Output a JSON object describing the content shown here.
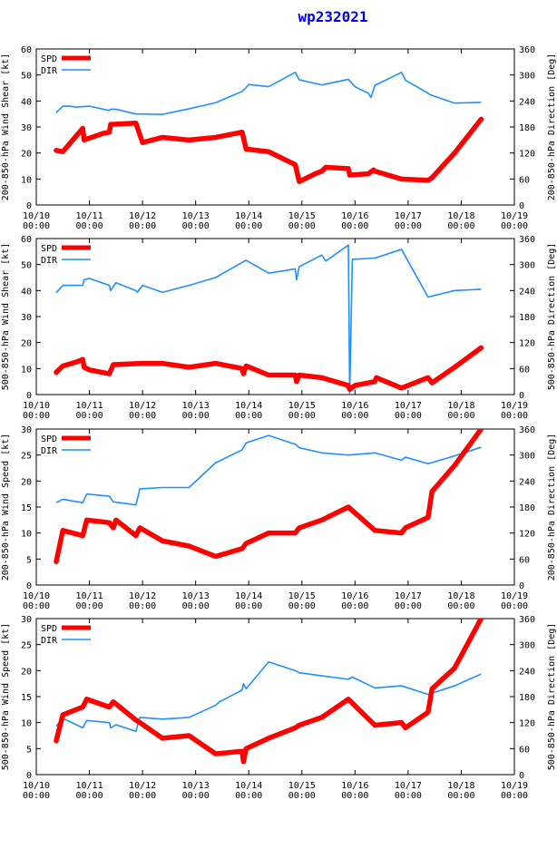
{
  "title": "wp232021",
  "colors": {
    "spd": "#ff0000",
    "dir": "#1e90ff",
    "axis": "#000000",
    "grid": "#000000"
  },
  "legend": {
    "spd": "SPD",
    "dir": "DIR"
  },
  "x_ticks": [
    [
      "10/10",
      "00:00"
    ],
    [
      "10/11",
      "00:00"
    ],
    [
      "10/12",
      "00:00"
    ],
    [
      "10/13",
      "00:00"
    ],
    [
      "10/14",
      "00:00"
    ],
    [
      "10/15",
      "00:00"
    ],
    [
      "10/16",
      "00:00"
    ],
    [
      "10/17",
      "00:00"
    ],
    [
      "10/18",
      "00:00"
    ],
    [
      "10/19",
      "00:00"
    ]
  ],
  "chart_data": [
    {
      "type": "line",
      "xlabel": "",
      "ylabel": "200-850-hPa Wind Shear [kt]",
      "y2label": "200-850-hPa Direction [Deg]",
      "xlim": [
        0,
        9
      ],
      "ylim": [
        0,
        60
      ],
      "y2lim": [
        0,
        360
      ],
      "yticks": [
        "0",
        "10",
        "20",
        "30",
        "40",
        "50",
        "60"
      ],
      "y2ticks": [
        "0",
        "60",
        "120",
        "180",
        "240",
        "300",
        "360"
      ],
      "series": [
        {
          "name": "SPD",
          "axis": "left",
          "x": [
            0.375,
            0.5,
            0.875,
            0.9,
            1.25,
            1.375,
            1.4,
            1.875,
            2.0,
            2.375,
            2.875,
            3.375,
            3.875,
            3.95,
            4.375,
            4.875,
            4.95,
            5.25,
            5.375,
            5.45,
            5.875,
            5.9,
            6.25,
            6.35,
            6.375,
            6.875,
            7.375,
            7.45,
            7.875,
            8.375
          ],
          "y": [
            21,
            20.5,
            29.5,
            25,
            27.5,
            28,
            31,
            31.5,
            24,
            26,
            25,
            26,
            28,
            21.5,
            20.5,
            15.5,
            9,
            12,
            13,
            14.5,
            14,
            11.5,
            12,
            13.5,
            13,
            10,
            9.5,
            10.5,
            20,
            33
          ]
        },
        {
          "name": "DIR",
          "axis": "right",
          "x": [
            0.375,
            0.5,
            0.625,
            0.75,
            1.0,
            1.375,
            1.4,
            1.5,
            1.875,
            2.0,
            2.375,
            2.875,
            3.375,
            3.875,
            3.95,
            4.0,
            4.375,
            4.875,
            4.95,
            5.375,
            5.875,
            6.0,
            6.25,
            6.3,
            6.375,
            6.875,
            6.95,
            7.375,
            7.4,
            7.875,
            8.375
          ],
          "y": [
            213,
            228,
            228,
            226,
            228,
            218,
            221,
            221,
            210,
            210,
            209,
            222,
            236,
            262,
            271,
            278,
            273,
            306,
            289,
            277,
            290,
            273,
            258,
            248,
            276,
            306,
            288,
            258,
            255,
            235,
            237
          ]
        }
      ]
    },
    {
      "type": "line",
      "xlabel": "",
      "ylabel": "500-850-hPa Wind Shear [kt]",
      "y2label": "500-850-hPa Direction [Deg]",
      "xlim": [
        0,
        9
      ],
      "ylim": [
        0,
        60
      ],
      "y2lim": [
        0,
        360
      ],
      "yticks": [
        "0",
        "10",
        "20",
        "30",
        "40",
        "50",
        "60"
      ],
      "y2ticks": [
        "0",
        "60",
        "120",
        "180",
        "240",
        "300",
        "360"
      ],
      "series": [
        {
          "name": "SPD",
          "axis": "left",
          "x": [
            0.375,
            0.5,
            0.75,
            0.875,
            0.9,
            1.0,
            1.375,
            1.45,
            2.0,
            2.375,
            2.875,
            3.375,
            3.875,
            3.9,
            3.95,
            4.375,
            4.875,
            4.9,
            4.95,
            5.375,
            5.875,
            5.9,
            6.0,
            6.375,
            6.4,
            6.875,
            7.375,
            7.45,
            7.875,
            8.375
          ],
          "y": [
            8.5,
            11,
            12.5,
            13.5,
            10.5,
            9.5,
            8,
            11.5,
            12,
            12,
            10.5,
            12,
            10,
            8,
            11,
            7.5,
            7.5,
            5,
            7.5,
            6.5,
            3.5,
            2,
            3.5,
            5,
            6.5,
            2.5,
            6.5,
            4.5,
            10.5,
            18
          ]
        },
        {
          "name": "DIR",
          "axis": "right",
          "x": [
            0.375,
            0.5,
            0.875,
            0.9,
            1.0,
            1.375,
            1.4,
            1.5,
            1.875,
            1.9,
            2.0,
            2.375,
            2.875,
            3.375,
            3.875,
            3.95,
            4.375,
            4.875,
            4.9,
            4.95,
            5.375,
            5.45,
            5.875,
            5.9,
            5.95,
            6.375,
            6.875,
            7.375,
            7.875,
            8.375
          ],
          "y": [
            235,
            252,
            252,
            265,
            268,
            252,
            240,
            258,
            240,
            236,
            252,
            236,
            252,
            270,
            305,
            310,
            280,
            290,
            265,
            295,
            322,
            308,
            345,
            0,
            312,
            315,
            335,
            225,
            240,
            243
          ]
        }
      ]
    },
    {
      "type": "line",
      "xlabel": "",
      "ylabel": "200-850-hPa Wind Speed [kt]",
      "y2label": "200-850-hPa Direction [Deg]",
      "xlim": [
        0,
        9
      ],
      "ylim": [
        0,
        30
      ],
      "y2lim": [
        0,
        360
      ],
      "yticks": [
        "0",
        "5",
        "10",
        "15",
        "20",
        "25",
        "30"
      ],
      "y2ticks": [
        "0",
        "60",
        "120",
        "180",
        "240",
        "300",
        "360"
      ],
      "series": [
        {
          "name": "SPD",
          "axis": "left",
          "x": [
            0.375,
            0.5,
            0.875,
            0.95,
            1.375,
            1.45,
            1.5,
            1.875,
            1.95,
            2.375,
            2.875,
            3.375,
            3.875,
            3.95,
            4.375,
            4.875,
            4.95,
            5.375,
            5.875,
            6.375,
            6.875,
            6.95,
            7.375,
            7.45,
            7.875,
            8.375
          ],
          "y": [
            4.5,
            10.5,
            9.5,
            12.5,
            12,
            11,
            12.5,
            9.5,
            11,
            8.5,
            7.5,
            5.5,
            7,
            8,
            10,
            10,
            11,
            12.5,
            15,
            10.5,
            10,
            11,
            13,
            18,
            23,
            30
          ]
        },
        {
          "name": "DIR",
          "axis": "right",
          "x": [
            0.375,
            0.5,
            0.875,
            0.95,
            1.375,
            1.45,
            1.875,
            1.95,
            2.375,
            2.875,
            3.375,
            3.875,
            3.95,
            4.375,
            4.875,
            4.95,
            5.375,
            5.875,
            6.375,
            6.875,
            6.95,
            7.375,
            7.875,
            8.375
          ],
          "y": [
            190,
            198,
            190,
            210,
            205,
            192,
            185,
            222,
            225,
            225,
            282,
            312,
            328,
            345,
            325,
            317,
            305,
            300,
            305,
            288,
            295,
            280,
            298,
            318
          ]
        }
      ]
    },
    {
      "type": "line",
      "xlabel": "",
      "ylabel": "500-850-hPa Wind Speed [kt]",
      "y2label": "500-850-hPa Direction [Deg]",
      "xlim": [
        0,
        9
      ],
      "ylim": [
        0,
        30
      ],
      "y2lim": [
        0,
        360
      ],
      "yticks": [
        "0",
        "5",
        "10",
        "15",
        "20",
        "25",
        "30"
      ],
      "y2ticks": [
        "0",
        "60",
        "120",
        "180",
        "240",
        "300",
        "360"
      ],
      "series": [
        {
          "name": "SPD",
          "axis": "left",
          "x": [
            0.375,
            0.5,
            0.875,
            0.95,
            1.375,
            1.45,
            1.875,
            1.95,
            2.375,
            2.875,
            3.375,
            3.875,
            3.9,
            3.95,
            4.375,
            4.875,
            4.95,
            5.375,
            5.875,
            6.375,
            6.875,
            6.95,
            7.375,
            7.45,
            7.875,
            8.375
          ],
          "y": [
            6.5,
            11.5,
            13,
            14.5,
            13,
            14,
            10.5,
            10,
            7,
            7.5,
            4,
            4.5,
            2.5,
            5,
            7,
            9,
            9.5,
            11,
            14.5,
            9.5,
            10,
            9,
            12,
            16.5,
            20.5,
            30
          ]
        },
        {
          "name": "DIR",
          "axis": "right",
          "x": [
            0.375,
            0.5,
            0.875,
            0.95,
            1.375,
            1.4,
            1.5,
            1.875,
            1.95,
            2.375,
            2.875,
            3.375,
            3.45,
            3.875,
            3.9,
            3.95,
            4.375,
            4.875,
            4.95,
            5.375,
            5.875,
            5.95,
            6.375,
            6.875,
            7.375,
            7.875,
            8.375
          ],
          "y": [
            112,
            130,
            108,
            125,
            120,
            108,
            115,
            100,
            132,
            128,
            132,
            160,
            168,
            195,
            210,
            198,
            260,
            240,
            235,
            228,
            220,
            225,
            200,
            205,
            185,
            205,
            232
          ]
        }
      ]
    }
  ]
}
